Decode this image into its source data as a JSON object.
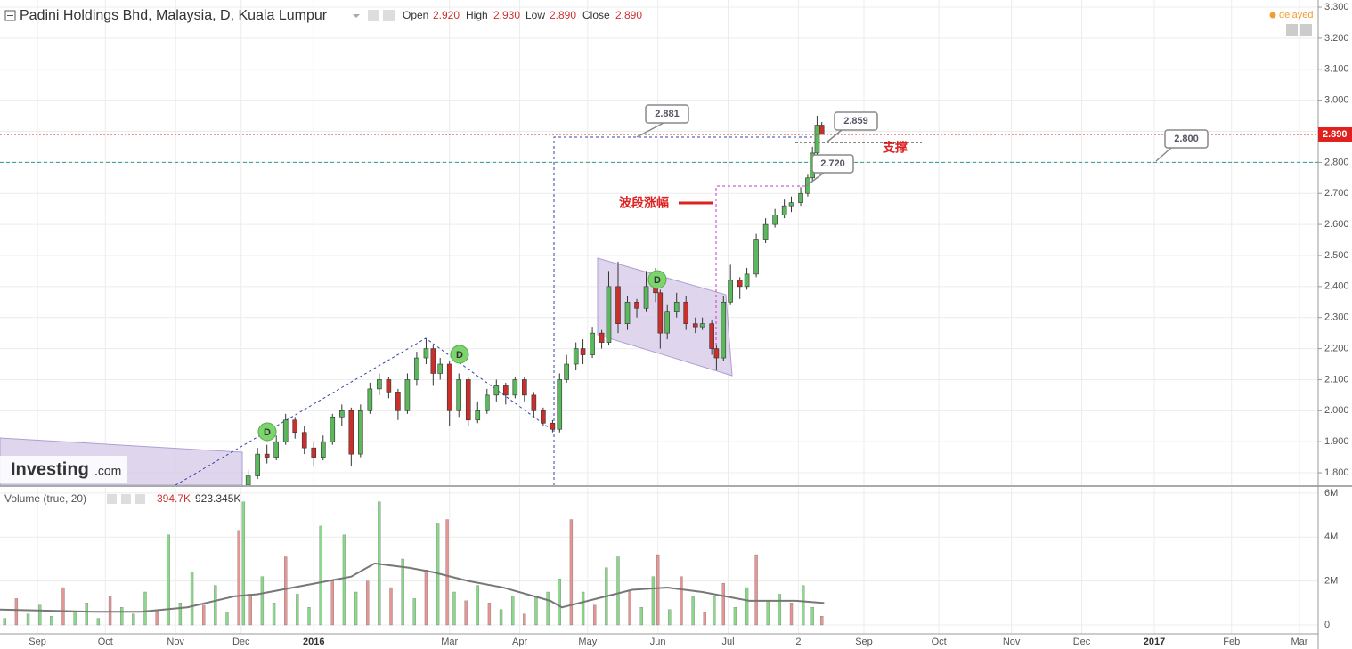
{
  "header": {
    "title": "Padini Holdings Bhd, Malaysia, D, Kuala Lumpur",
    "open_label": "Open",
    "open": "2.920",
    "high_label": "High",
    "high": "2.930",
    "low_label": "Low",
    "low": "2.890",
    "close_label": "Close",
    "close": "2.890",
    "status": "delayed"
  },
  "logo": {
    "brand": "Investing",
    "suffix": ".com"
  },
  "chart_data": [
    {
      "type": "candlestick",
      "x": [
        106,
        110,
        114,
        118,
        122,
        126,
        130,
        134,
        138,
        142,
        146,
        150,
        154,
        158,
        162,
        166,
        170,
        174,
        178,
        182,
        185,
        188,
        192,
        196,
        200,
        204,
        208,
        212,
        216,
        220,
        224,
        228,
        232,
        236,
        239,
        242,
        246,
        249,
        253,
        257,
        260,
        264,
        268,
        272,
        276,
        280,
        282,
        285,
        289,
        293,
        297,
        300,
        304,
        306,
        309,
        312,
        316,
        319,
        323,
        327,
        331,
        335,
        338,
        342,
        345,
        347,
        349,
        351
      ],
      "open": [
        1.76,
        1.79,
        1.86,
        1.85,
        1.9,
        1.97,
        1.93,
        1.88,
        1.85,
        1.9,
        1.98,
        2.0,
        1.86,
        2.0,
        2.07,
        2.1,
        2.06,
        2.0,
        2.1,
        2.17,
        2.2,
        2.12,
        2.15,
        2.0,
        2.1,
        1.97,
        2.0,
        2.05,
        2.08,
        2.05,
        2.1,
        2.05,
        2.0,
        1.96,
        1.94,
        2.1,
        2.15,
        2.2,
        2.18,
        2.25,
        2.22,
        2.4,
        2.28,
        2.35,
        2.33,
        2.4,
        2.38,
        2.25,
        2.32,
        2.35,
        2.28,
        2.27,
        2.28,
        2.2,
        2.17,
        2.35,
        2.42,
        2.4,
        2.44,
        2.55,
        2.6,
        2.63,
        2.66,
        2.67,
        2.7,
        2.75,
        2.83,
        2.92
      ],
      "high": [
        1.81,
        1.88,
        1.89,
        1.92,
        1.99,
        1.98,
        1.95,
        1.9,
        1.92,
        1.99,
        2.02,
        2.01,
        2.02,
        2.09,
        2.12,
        2.11,
        2.07,
        2.12,
        2.19,
        2.23,
        2.21,
        2.17,
        2.16,
        2.12,
        2.11,
        2.03,
        2.07,
        2.1,
        2.09,
        2.11,
        2.11,
        2.06,
        2.01,
        1.97,
        2.12,
        2.18,
        2.22,
        2.23,
        2.27,
        2.26,
        2.45,
        2.48,
        2.37,
        2.36,
        2.45,
        2.46,
        2.39,
        2.34,
        2.38,
        2.37,
        2.3,
        2.3,
        2.29,
        2.21,
        2.37,
        2.47,
        2.43,
        2.46,
        2.57,
        2.62,
        2.65,
        2.68,
        2.69,
        2.72,
        2.76,
        2.85,
        2.95,
        2.93
      ],
      "low": [
        1.75,
        1.78,
        1.83,
        1.84,
        1.89,
        1.91,
        1.86,
        1.82,
        1.84,
        1.89,
        1.95,
        1.82,
        1.85,
        1.99,
        2.05,
        2.04,
        1.97,
        1.99,
        2.08,
        2.15,
        2.08,
        2.1,
        1.95,
        1.98,
        1.95,
        1.96,
        1.99,
        2.03,
        2.02,
        2.04,
        2.03,
        1.98,
        1.95,
        1.93,
        1.93,
        2.09,
        2.13,
        2.15,
        2.17,
        2.2,
        2.21,
        2.25,
        2.26,
        2.3,
        2.32,
        2.35,
        2.2,
        2.23,
        2.3,
        2.26,
        2.25,
        2.26,
        2.18,
        2.13,
        2.16,
        2.34,
        2.36,
        2.39,
        2.43,
        2.54,
        2.59,
        2.62,
        2.64,
        2.66,
        2.69,
        2.74,
        2.82,
        2.89
      ],
      "close": [
        1.79,
        1.86,
        1.85,
        1.9,
        1.97,
        1.93,
        1.88,
        1.85,
        1.9,
        1.98,
        2.0,
        1.86,
        2.0,
        2.07,
        2.1,
        2.06,
        2.0,
        2.1,
        2.17,
        2.2,
        2.12,
        2.15,
        2.0,
        2.1,
        1.97,
        2.0,
        2.05,
        2.08,
        2.05,
        2.1,
        2.05,
        2.0,
        1.96,
        1.94,
        2.1,
        2.15,
        2.2,
        2.18,
        2.25,
        2.22,
        2.4,
        2.28,
        2.35,
        2.33,
        2.4,
        2.38,
        2.25,
        2.32,
        2.35,
        2.28,
        2.27,
        2.28,
        2.2,
        2.17,
        2.35,
        2.42,
        2.4,
        2.44,
        2.55,
        2.6,
        2.63,
        2.66,
        2.67,
        2.7,
        2.75,
        2.83,
        2.92,
        2.89
      ],
      "up_color": "#5cb85c",
      "down_color": "#c9302c",
      "xlim": [
        0,
        563
      ],
      "xticks": [
        {
          "value": 16,
          "label": "Sep"
        },
        {
          "value": 45,
          "label": "Oct"
        },
        {
          "value": 75,
          "label": "Nov"
        },
        {
          "value": 103,
          "label": "Dec"
        },
        {
          "value": 134,
          "label": "2016"
        },
        {
          "value": 192,
          "label": "Mar"
        },
        {
          "value": 222,
          "label": "Apr"
        },
        {
          "value": 251,
          "label": "May"
        },
        {
          "value": 281,
          "label": "Jun"
        },
        {
          "value": 311,
          "label": "Jul"
        },
        {
          "value": 341,
          "label": "2"
        },
        {
          "value": 369,
          "label": "Sep"
        },
        {
          "value": 401,
          "label": "Oct"
        },
        {
          "value": 432,
          "label": "Nov"
        },
        {
          "value": 462,
          "label": "Dec"
        },
        {
          "value": 493,
          "label": "2017"
        },
        {
          "value": 526,
          "label": "Feb"
        },
        {
          "value": 555,
          "label": "Mar"
        }
      ],
      "ylim": [
        1.76,
        3.323
      ],
      "yticks": [
        {
          "value": 1.8,
          "label": "1.800"
        },
        {
          "value": 1.9,
          "label": "1.900"
        },
        {
          "value": 2.0,
          "label": "2.000"
        },
        {
          "value": 2.1,
          "label": "2.100"
        },
        {
          "value": 2.2,
          "label": "2.200"
        },
        {
          "value": 2.3,
          "label": "2.300"
        },
        {
          "value": 2.4,
          "label": "2.400"
        },
        {
          "value": 2.5,
          "label": "2.500"
        },
        {
          "value": 2.6,
          "label": "2.600"
        },
        {
          "value": 2.7,
          "label": "2.700"
        },
        {
          "value": 2.8,
          "label": "2.800"
        },
        {
          "value": 2.9,
          "label": "2.900"
        },
        {
          "value": 3.0,
          "label": "3.000"
        },
        {
          "value": 3.1,
          "label": "3.100"
        },
        {
          "value": 3.2,
          "label": "3.200"
        },
        {
          "value": 3.3,
          "label": "3.300"
        }
      ],
      "grid": true,
      "reference_lines": [
        {
          "value": 2.8,
          "color": "#2a9d8f"
        }
      ],
      "annotations": [
        "2.881",
        "2.859",
        "2.720",
        "2.800",
        "支撑",
        "波段涨幅"
      ],
      "markers": [
        "D",
        "D",
        "D"
      ]
    },
    {
      "type": "bar",
      "title": "Volume (true, 20)",
      "stats": [
        "394.7K",
        "923.345K"
      ],
      "x": [
        2,
        7,
        12,
        17,
        22,
        27,
        32,
        37,
        42,
        47,
        52,
        57,
        62,
        67,
        72,
        77,
        82,
        87,
        92,
        97,
        102,
        104,
        107,
        112,
        117,
        122,
        127,
        132,
        137,
        142,
        147,
        152,
        157,
        162,
        167,
        172,
        177,
        182,
        187,
        191,
        194,
        199,
        204,
        209,
        214,
        219,
        224,
        229,
        234,
        239,
        244,
        249,
        254,
        259,
        264,
        269,
        274,
        279,
        281,
        286,
        291,
        296,
        301,
        305,
        309,
        314,
        319,
        323,
        328,
        333,
        338,
        343,
        347,
        351
      ],
      "values": [
        300000,
        1200000,
        500000,
        900000,
        400000,
        1700000,
        600000,
        1000000,
        300000,
        1300000,
        800000,
        500000,
        1500000,
        700000,
        4100000,
        1000000,
        2400000,
        900000,
        1800000,
        600000,
        4300000,
        5600000,
        1400000,
        2200000,
        1000000,
        3100000,
        1400000,
        800000,
        4500000,
        2000000,
        4100000,
        1500000,
        2000000,
        5600000,
        1700000,
        3000000,
        1200000,
        2500000,
        4600000,
        4800000,
        1500000,
        1100000,
        1800000,
        1000000,
        700000,
        1300000,
        500000,
        1300000,
        1500000,
        2100000,
        4800000,
        1500000,
        900000,
        2600000,
        3100000,
        1600000,
        800000,
        2200000,
        3200000,
        700000,
        2200000,
        1300000,
        600000,
        1300000,
        1900000,
        800000,
        1700000,
        3200000,
        1100000,
        1400000,
        1000000,
        1800000,
        800000,
        400000
      ],
      "colors": [
        "#8ad88a",
        "#e69494",
        "#8ad88a",
        "#8ad88a",
        "#8ad88a",
        "#e69494",
        "#8ad88a",
        "#8ad88a",
        "#8ad88a",
        "#e69494",
        "#8ad88a",
        "#8ad88a",
        "#8ad88a",
        "#e69494",
        "#8ad88a",
        "#8ad88a",
        "#8ad88a",
        "#e69494",
        "#8ad88a",
        "#8ad88a",
        "#e69494",
        "#8ad88a",
        "#e69494",
        "#8ad88a",
        "#8ad88a",
        "#e69494",
        "#8ad88a",
        "#8ad88a",
        "#8ad88a",
        "#e69494",
        "#8ad88a",
        "#8ad88a",
        "#e69494",
        "#8ad88a",
        "#e69494",
        "#8ad88a",
        "#8ad88a",
        "#e69494",
        "#8ad88a",
        "#e69494",
        "#8ad88a",
        "#e69494",
        "#8ad88a",
        "#e69494",
        "#8ad88a",
        "#8ad88a",
        "#e69494",
        "#8ad88a",
        "#8ad88a",
        "#8ad88a",
        "#e69494",
        "#8ad88a",
        "#e69494",
        "#8ad88a",
        "#8ad88a",
        "#e69494",
        "#8ad88a",
        "#8ad88a",
        "#e69494",
        "#8ad88a",
        "#e69494",
        "#8ad88a",
        "#e69494",
        "#8ad88a",
        "#e69494",
        "#8ad88a",
        "#8ad88a",
        "#e69494",
        "#8ad88a",
        "#8ad88a",
        "#e69494",
        "#8ad88a",
        "#8ad88a",
        "#e69494"
      ],
      "line": {
        "color": "#777777",
        "x": [
          0,
          20,
          40,
          60,
          80,
          100,
          110,
          130,
          150,
          160,
          175,
          185,
          200,
          215,
          235,
          240,
          255,
          270,
          285,
          300,
          320,
          340,
          352
        ],
        "values": [
          700000,
          650000,
          600000,
          600000,
          800000,
          1300000,
          1400000,
          1800000,
          2200000,
          2800000,
          2600000,
          2400000,
          2000000,
          1700000,
          1100000,
          800000,
          1200000,
          1600000,
          1700000,
          1500000,
          1100000,
          1100000,
          1000000
        ]
      },
      "ylim": [
        -405000,
        6240000
      ],
      "yticks": [
        0,
        {
          "value": 2000000,
          "label": "2M"
        },
        {
          "value": 4000000,
          "label": "4M"
        },
        {
          "value": 6000000,
          "label": "6M"
        }
      ]
    }
  ]
}
